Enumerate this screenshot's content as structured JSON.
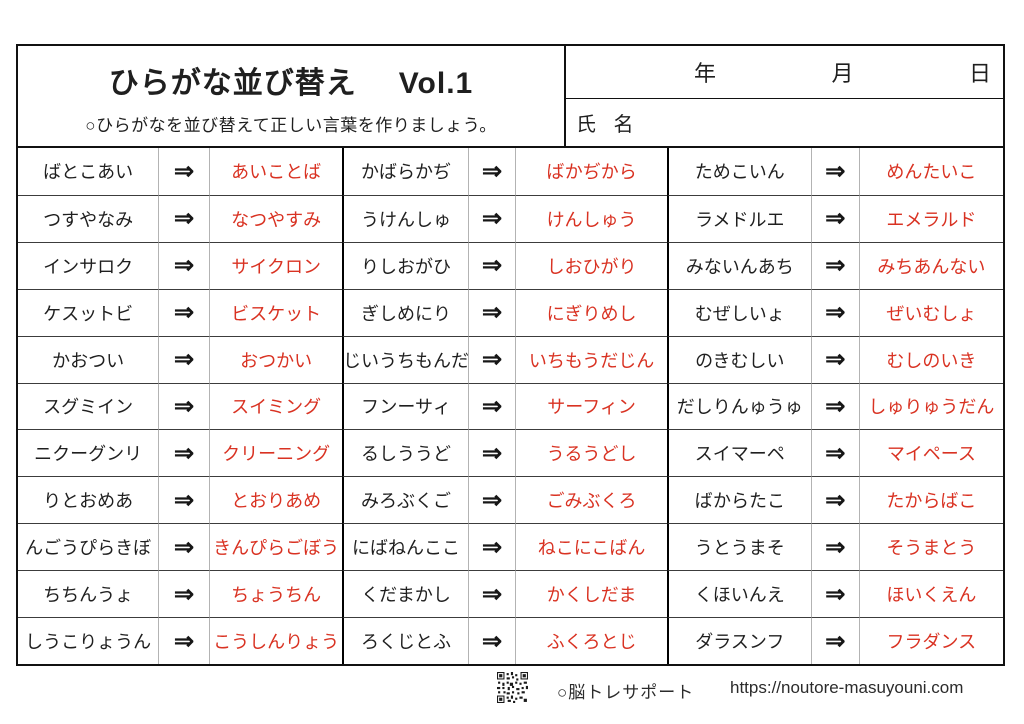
{
  "page": {
    "title_main": "ひらがな並び替え",
    "title_vol": "Vol.1",
    "subtitle": "○ひらがなを並び替えて正しい言葉を作りましょう。",
    "date_labels": [
      "年",
      "月",
      "日"
    ],
    "name_label": "氏 名"
  },
  "table": {
    "arrow": "⇒",
    "rows": [
      [
        {
          "s": "ばとこあい",
          "a": "あいことば"
        },
        {
          "s": "かばらかぢ",
          "a": "ばかぢから"
        },
        {
          "s": "ためこいん",
          "a": "めんたいこ"
        }
      ],
      [
        {
          "s": "つすやなみ",
          "a": "なつやすみ"
        },
        {
          "s": "うけんしゅ",
          "a": "けんしゅう"
        },
        {
          "s": "ラメドルエ",
          "a": "エメラルド"
        }
      ],
      [
        {
          "s": "インサロク",
          "a": "サイクロン"
        },
        {
          "s": "りしおがひ",
          "a": "しおひがり"
        },
        {
          "s": "みないんあち",
          "a": "みちあんない"
        }
      ],
      [
        {
          "s": "ケスットビ",
          "a": "ビスケット"
        },
        {
          "s": "ぎしめにり",
          "a": "にぎりめし"
        },
        {
          "s": "むぜしいょ",
          "a": "ぜいむしょ"
        }
      ],
      [
        {
          "s": "かおつい",
          "a": "おつかい"
        },
        {
          "s": "じいうちもんだ",
          "a": "いちもうだじん"
        },
        {
          "s": "のきむしい",
          "a": "むしのいき"
        }
      ],
      [
        {
          "s": "スグミイン",
          "a": "スイミング"
        },
        {
          "s": "フンーサィ",
          "a": "サーフィン"
        },
        {
          "s": "だしりんゅうゅ",
          "a": "しゅりゅうだん"
        }
      ],
      [
        {
          "s": "ニクーグンリ",
          "a": "クリーニング"
        },
        {
          "s": "るしううど",
          "a": "うるうどし"
        },
        {
          "s": "スイマーペ",
          "a": "マイペース"
        }
      ],
      [
        {
          "s": "りとおめあ",
          "a": "とおりあめ"
        },
        {
          "s": "みろぶくご",
          "a": "ごみぶくろ"
        },
        {
          "s": "ばからたこ",
          "a": "たからばこ"
        }
      ],
      [
        {
          "s": "んごうぴらきぼ",
          "a": "きんぴらごぼう"
        },
        {
          "s": "にばねんここ",
          "a": "ねこにこばん"
        },
        {
          "s": "うとうまそ",
          "a": "そうまとう"
        }
      ],
      [
        {
          "s": "ちちんうょ",
          "a": "ちょうちん"
        },
        {
          "s": "くだまかし",
          "a": "かくしだま"
        },
        {
          "s": "くほいんえ",
          "a": "ほいくえん"
        }
      ],
      [
        {
          "s": "しうこりょうん",
          "a": "こうしんりょう"
        },
        {
          "s": "ろくじとふ",
          "a": "ふくろとじ"
        },
        {
          "s": "ダラスンフ",
          "a": "フラダンス"
        }
      ]
    ]
  },
  "footer": {
    "site_name": "○脳トレサポート",
    "site_url": "https://noutore-masuyouni.com"
  },
  "colors": {
    "answer_red": "#d93222",
    "text_black": "#1f1f1f",
    "grid_light": "#b3b3b3",
    "grid_dark": "#3c3c3c",
    "frame_black": "#111111"
  }
}
